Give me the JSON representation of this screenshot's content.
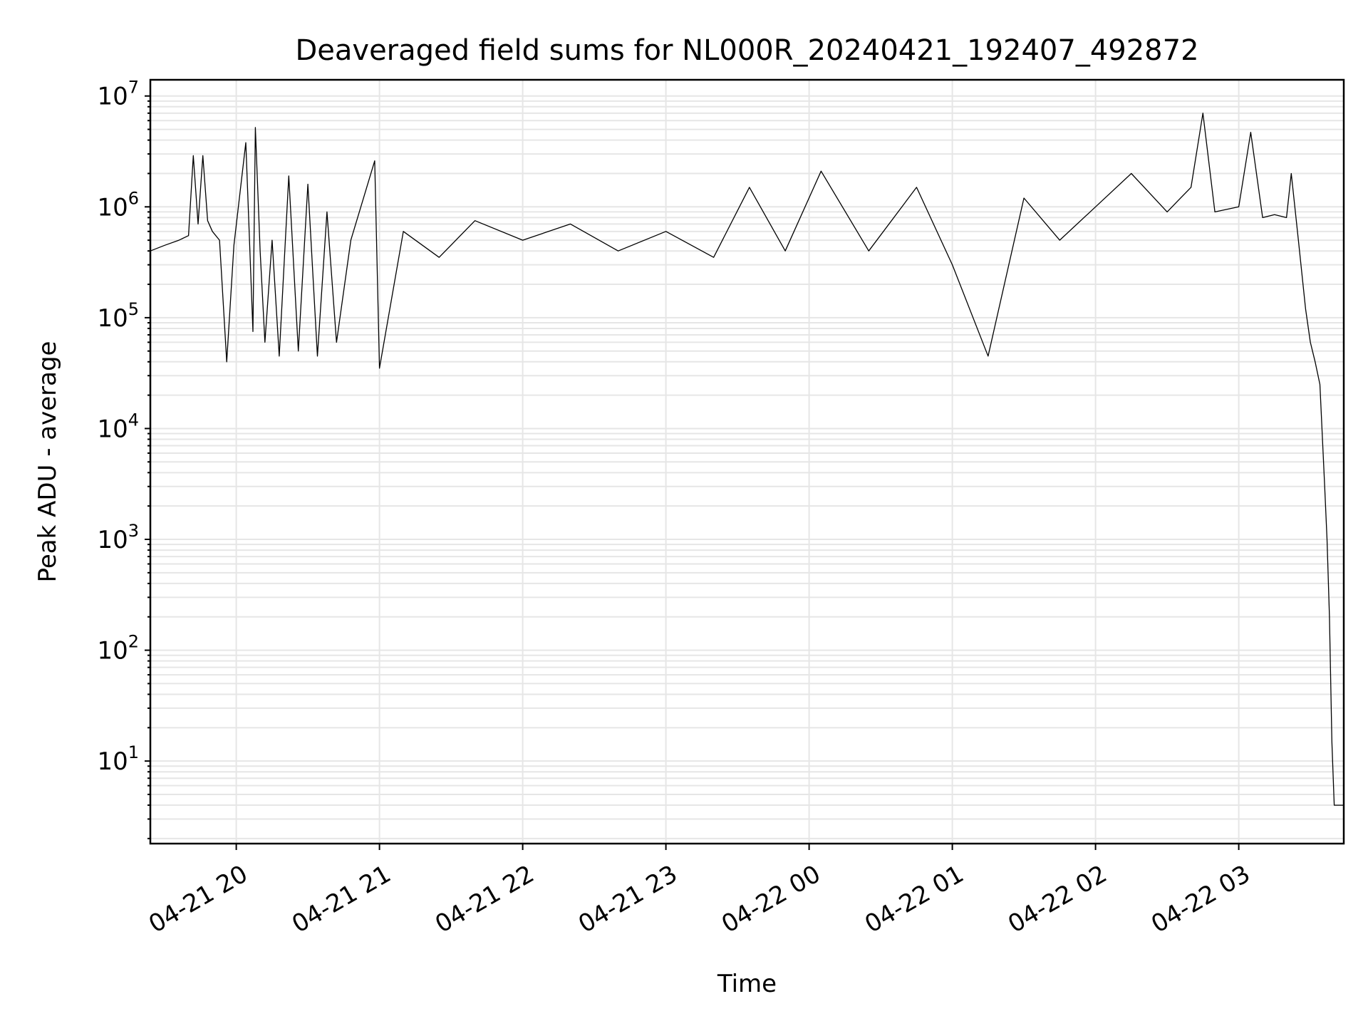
{
  "chart_data": {
    "type": "line",
    "title": "Deaveraged field sums for NL000R_20240421_192407_492872",
    "xlabel": "Time",
    "ylabel": "Peak ADU - average",
    "yscale": "log",
    "ylim": [
      1.8,
      14000000
    ],
    "xlim": [
      "2024-04-21 19:24",
      "2024-04-22 03:44"
    ],
    "grid": true,
    "legend": "none",
    "line_color": "#000000",
    "x_tick_labels": [
      "04-21 20",
      "04-21 21",
      "04-21 22",
      "04-21 23",
      "04-22 00",
      "04-22 01",
      "04-22 02",
      "04-22 03"
    ],
    "x_ticks": [
      "2024-04-21 20:00",
      "2024-04-21 21:00",
      "2024-04-21 22:00",
      "2024-04-21 23:00",
      "2024-04-22 00:00",
      "2024-04-22 01:00",
      "2024-04-22 02:00",
      "2024-04-22 03:00"
    ],
    "y_ticks": [
      10,
      100,
      1000,
      10000,
      100000,
      1000000,
      10000000
    ],
    "y_tick_labels": [
      {
        "base": "10",
        "exp": "1"
      },
      {
        "base": "10",
        "exp": "2"
      },
      {
        "base": "10",
        "exp": "3"
      },
      {
        "base": "10",
        "exp": "4"
      },
      {
        "base": "10",
        "exp": "5"
      },
      {
        "base": "10",
        "exp": "6"
      },
      {
        "base": "10",
        "exp": "7"
      }
    ],
    "series": [
      {
        "x": [
          "2024-04-21 19:24",
          "2024-04-21 19:30",
          "2024-04-21 19:36",
          "2024-04-21 19:40",
          "2024-04-21 19:42",
          "2024-04-21 19:44",
          "2024-04-21 19:46",
          "2024-04-21 19:48",
          "2024-04-21 19:50",
          "2024-04-21 19:53",
          "2024-04-21 19:56",
          "2024-04-21 19:59",
          "2024-04-21 20:04",
          "2024-04-21 20:07",
          "2024-04-21 20:08",
          "2024-04-21 20:10",
          "2024-04-21 20:12",
          "2024-04-21 20:15",
          "2024-04-21 20:18",
          "2024-04-21 20:22",
          "2024-04-21 20:26",
          "2024-04-21 20:30",
          "2024-04-21 20:34",
          "2024-04-21 20:38",
          "2024-04-21 20:42",
          "2024-04-21 20:48",
          "2024-04-21 20:58",
          "2024-04-21 21:00",
          "2024-04-21 21:10",
          "2024-04-21 21:25",
          "2024-04-21 21:40",
          "2024-04-21 22:00",
          "2024-04-21 22:20",
          "2024-04-21 22:40",
          "2024-04-21 23:00",
          "2024-04-21 23:20",
          "2024-04-21 23:35",
          "2024-04-21 23:50",
          "2024-04-22 00:05",
          "2024-04-22 00:25",
          "2024-04-22 00:45",
          "2024-04-22 01:00",
          "2024-04-22 01:15",
          "2024-04-22 01:30",
          "2024-04-22 01:45",
          "2024-04-22 02:00",
          "2024-04-22 02:15",
          "2024-04-22 02:30",
          "2024-04-22 02:40",
          "2024-04-22 02:45",
          "2024-04-22 02:50",
          "2024-04-22 03:00",
          "2024-04-22 03:05",
          "2024-04-22 03:10",
          "2024-04-22 03:15",
          "2024-04-22 03:20",
          "2024-04-22 03:22",
          "2024-04-22 03:25",
          "2024-04-22 03:28",
          "2024-04-22 03:30",
          "2024-04-22 03:32",
          "2024-04-22 03:34",
          "2024-04-22 03:36",
          "2024-04-22 03:37",
          "2024-04-22 03:38",
          "2024-04-22 03:39",
          "2024-04-22 03:40",
          "2024-04-22 03:44"
        ],
        "y": [
          400000,
          450000,
          500000,
          550000,
          2900000,
          700000,
          2900000,
          750000,
          600000,
          500000,
          40000,
          450000,
          3800000,
          75000,
          5200000,
          400000,
          60000,
          500000,
          45000,
          1900000,
          50000,
          1600000,
          45000,
          900000,
          60000,
          500000,
          2600000,
          35000,
          600000,
          350000,
          750000,
          500000,
          700000,
          400000,
          600000,
          350000,
          1500000,
          400000,
          2100000,
          400000,
          1500000,
          300000,
          45000,
          1200000,
          500000,
          1000000,
          2000000,
          900000,
          1500000,
          7000000,
          900000,
          1000000,
          4700000,
          800000,
          850000,
          800000,
          2000000,
          500000,
          120000,
          60000,
          40000,
          25000,
          3000,
          1000,
          200,
          15,
          4,
          4
        ]
      }
    ]
  }
}
